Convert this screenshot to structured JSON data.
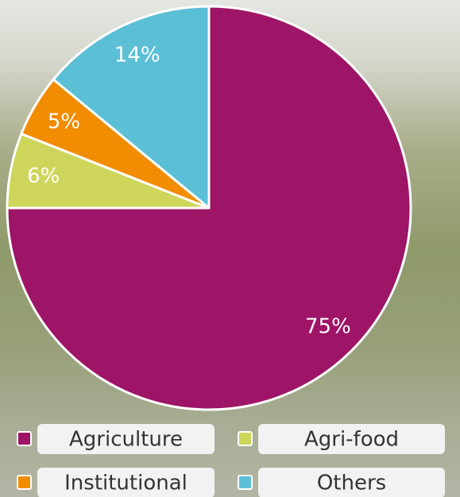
{
  "chart_data": {
    "type": "pie",
    "categories": [
      "Agriculture",
      "Agri-food",
      "Institutional",
      "Others"
    ],
    "values": [
      75,
      6,
      5,
      14
    ],
    "value_labels": [
      "75%",
      "6%",
      "5%",
      "14%"
    ],
    "colors": [
      "#9e1466",
      "#cdd65a",
      "#f28c00",
      "#5bbfd6"
    ]
  }
}
